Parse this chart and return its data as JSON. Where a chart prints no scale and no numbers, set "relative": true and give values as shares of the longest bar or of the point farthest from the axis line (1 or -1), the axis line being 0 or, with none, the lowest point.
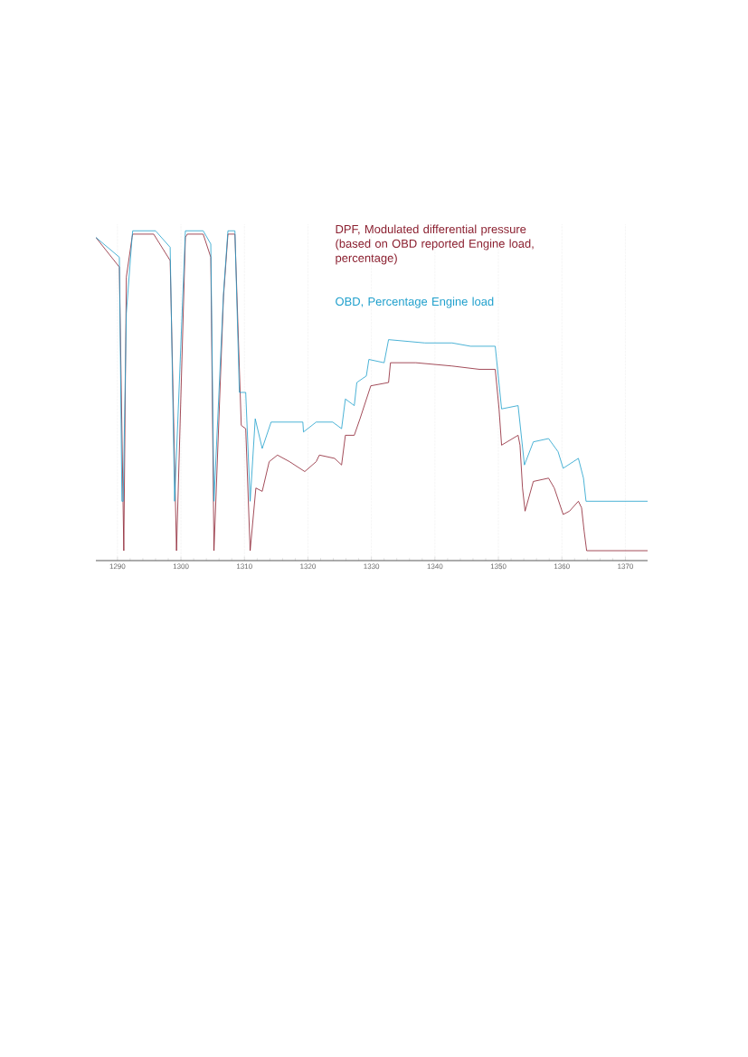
{
  "chart_data": {
    "type": "line",
    "relative": true,
    "grid": true,
    "xlim": [
      1286.6,
      1373.5
    ],
    "xticks": [
      1290,
      1300,
      1310,
      1320,
      1330,
      1340,
      1350,
      1360,
      1370
    ],
    "series": [
      {
        "name": "DPF, Modulated differential pressure (based on OBD reported Engine load, percentage)",
        "color": "#8b2030",
        "x": [
          1286.6,
          1290.3,
          1291.0,
          1291.4,
          1292.3,
          1292.4,
          1295.7,
          1298.3,
          1299.3,
          1300.7,
          1301.0,
          1303.5,
          1304.7,
          1305.2,
          1306.7,
          1307.4,
          1308.5,
          1309.5,
          1310.2,
          1310.9,
          1311.8,
          1312.8,
          1313.9,
          1315.2,
          1317.1,
          1319.5,
          1321.3,
          1321.8,
          1324.2,
          1325.3,
          1325.9,
          1327.3,
          1328.2,
          1329.9,
          1332.7,
          1333.0,
          1337.0,
          1342.7,
          1347.0,
          1349.5,
          1350.1,
          1350.5,
          1353.1,
          1353.4,
          1353.8,
          1354.2,
          1355.5,
          1357.9,
          1358.8,
          1360.2,
          1361.2,
          1362.6,
          1363.1,
          1363.5,
          1363.9,
          1373.5
        ],
        "values": [
          0.98,
          0.89,
          0.03,
          0.86,
          0.98,
          0.99,
          0.99,
          0.91,
          0.03,
          0.98,
          0.99,
          0.99,
          0.92,
          0.03,
          0.8,
          0.99,
          0.99,
          0.41,
          0.4,
          0.03,
          0.22,
          0.21,
          0.3,
          0.32,
          0.3,
          0.27,
          0.3,
          0.32,
          0.31,
          0.29,
          0.38,
          0.38,
          0.43,
          0.53,
          0.54,
          0.6,
          0.6,
          0.59,
          0.58,
          0.58,
          0.46,
          0.35,
          0.38,
          0.35,
          0.22,
          0.15,
          0.24,
          0.25,
          0.22,
          0.14,
          0.15,
          0.18,
          0.16,
          0.09,
          0.03,
          0.03
        ]
      },
      {
        "name": "OBD, Percentage Engine load",
        "color": "#1e9fcc",
        "x": [
          1286.6,
          1290.3,
          1290.7,
          1290.9,
          1291.4,
          1292.3,
          1292.4,
          1296.0,
          1298.3,
          1299.0,
          1300.7,
          1303.5,
          1304.7,
          1305.2,
          1306.7,
          1307.4,
          1308.5,
          1309.2,
          1310.2,
          1310.9,
          1311.7,
          1312.8,
          1314.2,
          1319.2,
          1319.3,
          1321.3,
          1323.9,
          1325.3,
          1325.9,
          1327.3,
          1327.7,
          1329.2,
          1329.6,
          1332.0,
          1332.7,
          1338.4,
          1342.7,
          1345.6,
          1349.5,
          1350.5,
          1353.1,
          1354.1,
          1355.5,
          1357.9,
          1359.4,
          1360.2,
          1362.6,
          1363.4,
          1363.8,
          1373.5
        ],
        "values": [
          0.98,
          0.92,
          0.18,
          0.18,
          0.75,
          0.98,
          1.0,
          1.0,
          0.95,
          0.18,
          1.0,
          1.0,
          0.96,
          0.18,
          0.81,
          1.0,
          1.0,
          0.51,
          0.51,
          0.18,
          0.43,
          0.34,
          0.42,
          0.42,
          0.39,
          0.42,
          0.42,
          0.4,
          0.49,
          0.47,
          0.54,
          0.56,
          0.61,
          0.6,
          0.67,
          0.66,
          0.66,
          0.65,
          0.65,
          0.46,
          0.47,
          0.29,
          0.36,
          0.37,
          0.33,
          0.28,
          0.31,
          0.25,
          0.18,
          0.18
        ]
      }
    ]
  }
}
